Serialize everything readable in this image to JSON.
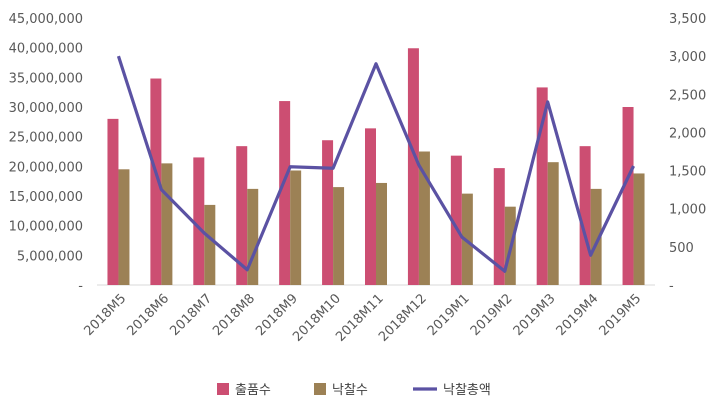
{
  "chart_data": {
    "type": "bar",
    "categories": [
      "2018M5",
      "2018M6",
      "2018M7",
      "2018M8",
      "2018M9",
      "2018M10",
      "2018M11",
      "2018M12",
      "2019M1",
      "2019M2",
      "2019M3",
      "2019M4",
      "2019M5"
    ],
    "series": [
      {
        "name": "출품수",
        "type": "bar",
        "axis": "left",
        "color": "#cc4e72",
        "values": [
          28000000,
          34800000,
          21500000,
          23400000,
          31000000,
          24400000,
          26400000,
          39900000,
          21800000,
          19700000,
          33300000,
          23400000,
          30000000
        ]
      },
      {
        "name": "낙찰수",
        "type": "bar",
        "axis": "left",
        "color": "#9c8155",
        "values": [
          19500000,
          20500000,
          13500000,
          16200000,
          19300000,
          16500000,
          17200000,
          22500000,
          15400000,
          13200000,
          20700000,
          16200000,
          18800000
        ]
      },
      {
        "name": "낙찰총액",
        "type": "line",
        "axis": "right",
        "color": "#5b52a3",
        "values": [
          3000,
          1250,
          680,
          200,
          1550,
          1530,
          2900,
          1570,
          630,
          180,
          2400,
          390,
          1560
        ]
      }
    ],
    "left_axis": {
      "min": 0,
      "max": 45000000,
      "ticks": [
        0,
        5000000,
        10000000,
        15000000,
        20000000,
        25000000,
        30000000,
        35000000,
        40000000,
        45000000
      ],
      "tick_labels": [
        "-",
        "5,000,000",
        "10,000,000",
        "15,000,000",
        "20,000,000",
        "25,000,000",
        "30,000,000",
        "35,000,000",
        "40,000,000",
        "45,000,000"
      ]
    },
    "right_axis": {
      "min": 0,
      "max": 3500,
      "ticks": [
        0,
        500,
        1000,
        1500,
        2000,
        2500,
        3000,
        3500
      ],
      "tick_labels": [
        "-",
        "500",
        "1,000",
        "1,500",
        "2,000",
        "2,500",
        "3,000",
        "3,500"
      ]
    },
    "legend": {
      "position": "bottom",
      "items": [
        "출품수",
        "낙찰수",
        "낙찰총액"
      ]
    },
    "grid": false
  }
}
